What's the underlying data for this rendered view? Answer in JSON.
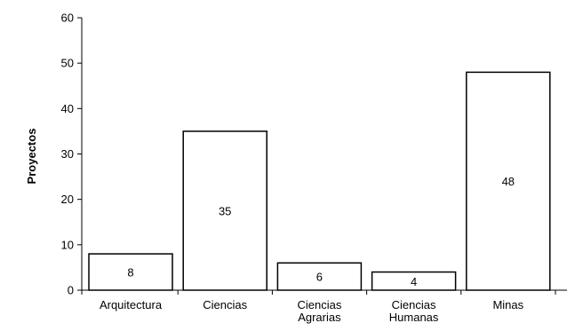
{
  "chart_data": {
    "type": "bar",
    "title": "",
    "xlabel": "",
    "ylabel": "Proyectos",
    "categories": [
      "Arquitectura",
      "Ciencias",
      "Ciencias Agrarias",
      "Ciencias Humanas",
      "Minas"
    ],
    "category_lines": [
      [
        "Arquitectura"
      ],
      [
        "Ciencias"
      ],
      [
        "Ciencias",
        "Agrarias"
      ],
      [
        "Ciencias",
        "Humanas"
      ],
      [
        "Minas"
      ]
    ],
    "values": [
      8,
      35,
      6,
      4,
      48
    ],
    "ylim": [
      0,
      60
    ],
    "yticks": [
      0,
      10,
      20,
      30,
      40,
      50,
      60
    ],
    "grid": false,
    "legend": "none",
    "bar_fill": "#ffffff",
    "bar_stroke": "#000000"
  }
}
